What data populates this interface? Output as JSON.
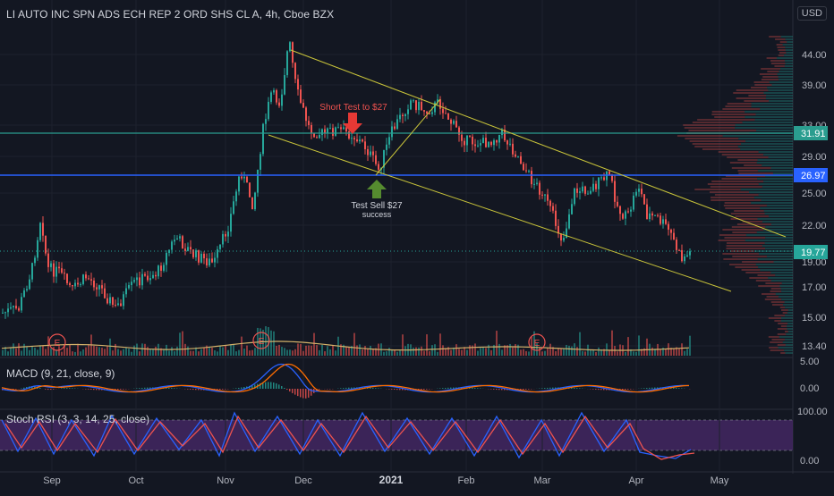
{
  "header": {
    "title": "LI AUTO INC SPN ADS ECH REP 2 ORD SHS CL A, 4h, Cboe BZX",
    "currency": "USD"
  },
  "price_axis": {
    "ticks": [
      "44.00",
      "39.00",
      "33.00",
      "29.00",
      "25.00",
      "22.00",
      "19.00",
      "17.00",
      "15.00",
      "13.40"
    ],
    "labels": {
      "level_high": "31.91",
      "level_low": "26.97",
      "last": "19.77"
    }
  },
  "time_axis": {
    "labels": [
      "Sep",
      "Oct",
      "Nov",
      "Dec",
      "2021",
      "Feb",
      "Mar",
      "Apr",
      "May"
    ]
  },
  "indicators": {
    "macd": {
      "label": "MACD (9, 21, close, 9)",
      "ticks": [
        "5.00",
        "0.00"
      ]
    },
    "stoch": {
      "label": "Stoch RSI (3, 3, 14, 25, close)",
      "ticks": [
        "100.00",
        "0.00"
      ]
    }
  },
  "annotations": {
    "short_test": "Short Test to $27",
    "test_sell": "Test Sell $27",
    "success": "success",
    "earnings_marker": "E"
  },
  "colors": {
    "background": "#131722",
    "up": "#26a69a",
    "down": "#ef5350",
    "channel": "#c9c43a",
    "level_teal": "#2a9d8f",
    "level_blue": "#2962ff",
    "stoch_band": "#4a2a6b"
  },
  "chart_data": {
    "type": "candlestick",
    "symbol": "LI",
    "interval": "4h",
    "price_range": [
      13.4,
      46
    ],
    "horizontal_levels": [
      31.91,
      26.97
    ],
    "last_price": 19.77,
    "markers": {
      "short_arrow_price": 33,
      "test_sell_price": 26.97
    }
  }
}
